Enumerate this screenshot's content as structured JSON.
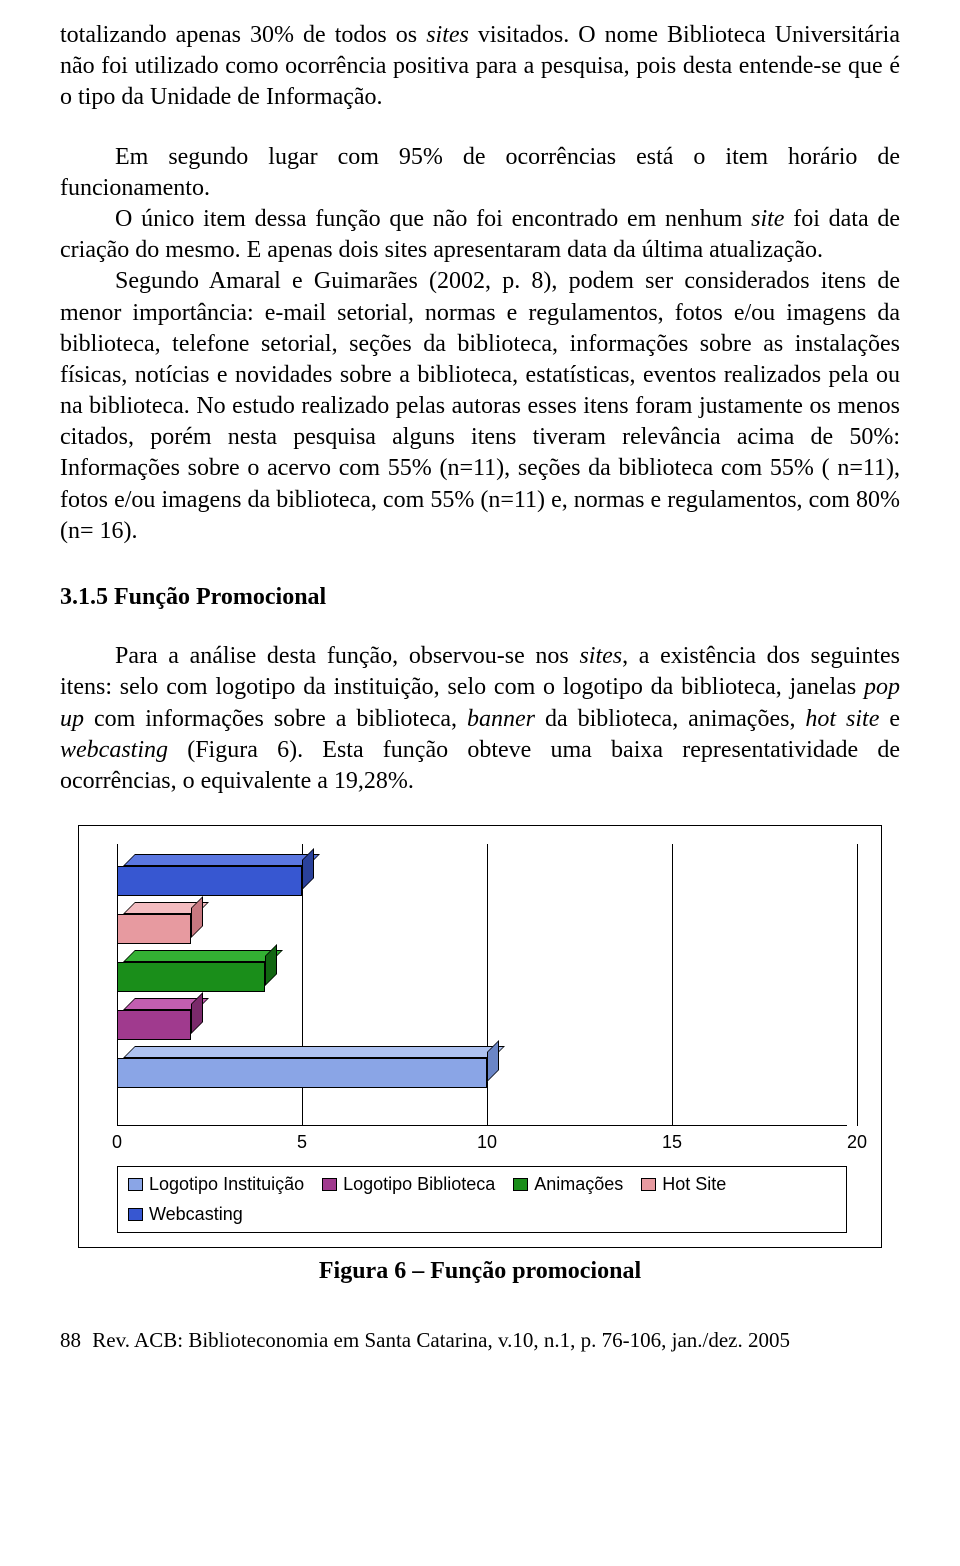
{
  "text": {
    "para1_a": "totalizando apenas 30% de todos os ",
    "para1_b": "sites",
    "para1_c": " visitados. O nome Biblioteca Universitária não foi utilizado como ocorrência positiva para a pesquisa, pois desta entende-se que é o tipo da Unidade de Informação.",
    "para2_a": "Em segundo lugar com  95% de ocorrências  está o item horário de funcionamento.",
    "para3_a": "O único item dessa função que não foi encontrado em nenhum ",
    "para3_b": "site",
    "para3_c": " foi data de criação do mesmo. E apenas dois sites  apresentaram data da última atualização.",
    "para4_a": "Segundo Amaral e Guimarães (2002, p. 8),  podem ser considerados itens de menor importância: e-mail setorial, normas e regulamentos, fotos e/ou imagens da biblioteca, telefone setorial, seções da biblioteca, informações sobre as instalações físicas, notícias e novidades sobre a biblioteca, estatísticas, eventos realizados pela ou na biblioteca. No estudo realizado pelas autoras  esses itens foram justamente os menos citados, porém nesta pesquisa alguns itens tiveram relevância acima de 50%: Informações sobre o acervo com 55% (n=11),  seções da biblioteca com 55% ( n=11), fotos e/ou imagens da biblioteca, com 55% (n=11) e, normas e regulamentos, com 80% (n= 16).",
    "heading": "3.1.5 Função Promocional",
    "para5_a": "Para a análise desta função, observou-se nos ",
    "para5_b": "sites",
    "para5_c": ", a existência dos seguintes itens: selo com logotipo da instituição, selo com o logotipo da biblioteca, janelas ",
    "para5_d": "pop up",
    "para5_e": " com informações sobre a biblioteca, ",
    "para5_f": "banner",
    "para5_g": " da biblioteca, animações, ",
    "para5_h": "hot site",
    "para5_i": " e ",
    "para5_j": "webcasting",
    "para5_k": " (Figura 6). Esta função obteve uma baixa representatividade de ocorrências, o equivalente a 19,28%.",
    "figure_caption": "Figura 6 – Função promocional",
    "page_number": "88",
    "footer": "Rev. ACB: Biblioteconomia em Santa Catarina, v.10, n.1, p. 76-106, jan./dez. 2005"
  },
  "chart": {
    "type": "bar-horizontal-3d",
    "xmax": 20,
    "xticks": [
      0,
      5,
      10,
      15,
      20
    ],
    "bars": [
      {
        "label": "Webcasting",
        "value": 5,
        "fill": "#3757d1",
        "shade": "#2a419a",
        "top": "#5b77e0",
        "y": 10
      },
      {
        "label": "Hot Site",
        "value": 2,
        "fill": "#e79aa0",
        "shade": "#c77880",
        "top": "#f3bcc0",
        "y": 58
      },
      {
        "label": "Animações",
        "value": 4,
        "fill": "#1a8e1a",
        "shade": "#116611",
        "top": "#33b133",
        "y": 106
      },
      {
        "label": "Logotipo Biblioteca",
        "value": 2,
        "fill": "#a03a8e",
        "shade": "#7a2a6b",
        "top": "#c25eb0",
        "y": 154
      },
      {
        "label": "Logotipo Instituição",
        "value": 10,
        "fill": "#8aa5e6",
        "shade": "#6a85c6",
        "top": "#aec2f0",
        "y": 202
      }
    ],
    "legend": [
      {
        "label": "Logotipo Instituição",
        "color": "#8aa5e6"
      },
      {
        "label": "Logotipo Biblioteca",
        "color": "#a03a8e"
      },
      {
        "label": "Animações",
        "color": "#1a8e1a"
      },
      {
        "label": "Hot Site",
        "color": "#e79aa0"
      },
      {
        "label": "Webcasting",
        "color": "#3757d1"
      }
    ],
    "grid_color": "#000000",
    "background": "#ffffff",
    "font_size_ticks": 18,
    "font_size_legend": 18
  }
}
